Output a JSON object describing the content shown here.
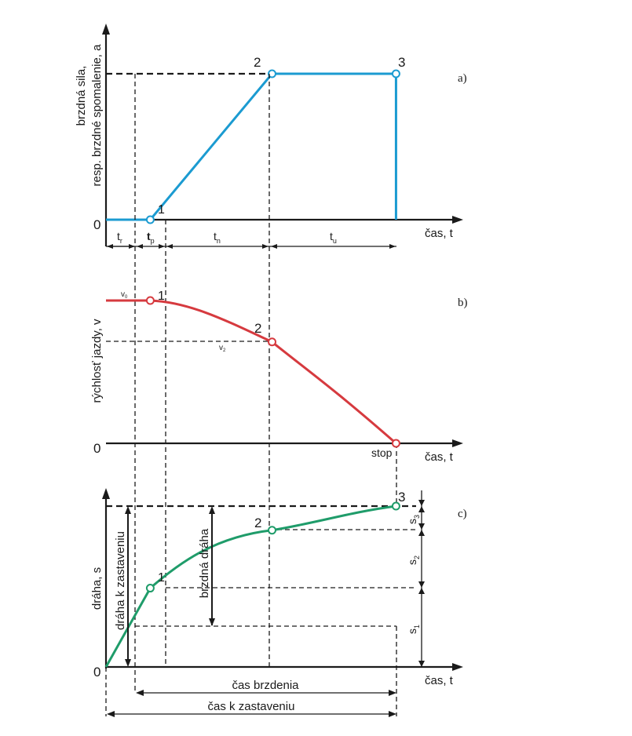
{
  "chart_data": [
    {
      "type": "line",
      "panel_label": "a)",
      "ylabel_line1": "brzdná sila,",
      "ylabel_line2": "resp. brzdné spomalenie, a",
      "xlabel": "čas, t",
      "origin_label": "0",
      "color": "#1b9bd1",
      "x": [
        0,
        0.75,
        1.31,
        1.31
      ],
      "y": [
        0,
        0,
        1,
        1
      ],
      "points": [
        {
          "label": "1",
          "x": 0.2,
          "y": 0
        },
        {
          "label": "2",
          "x": 0.75,
          "y": 1
        },
        {
          "label": "3",
          "x": 1.31,
          "y": 1
        }
      ],
      "intervals": [
        {
          "sym": "t",
          "sub": "r"
        },
        {
          "sym": "t",
          "sub": "p"
        },
        {
          "sym": "t",
          "sub": "n"
        },
        {
          "sym": "t",
          "sub": "u"
        }
      ]
    },
    {
      "type": "line",
      "panel_label": "b)",
      "ylabel": "rýchlosť jazdy, v",
      "xlabel": "čas, t",
      "origin_label": "0",
      "color": "#d63a3f",
      "v0_label": {
        "sym": "v",
        "sub": "0"
      },
      "v2_label": {
        "sym": "v",
        "sub": "2"
      },
      "stop_label": "stop",
      "x": [
        0,
        0.2,
        0.75,
        1.31
      ],
      "y": [
        1,
        1,
        0.71,
        0
      ],
      "points": [
        {
          "label": "1",
          "x": 0.2,
          "y": 1
        },
        {
          "label": "2",
          "x": 0.75,
          "y": 0.71
        }
      ]
    },
    {
      "type": "line",
      "panel_label": "c)",
      "ylabel": "dráha, s",
      "xlabel": "čas, t",
      "origin_label": "0",
      "color": "#1f9c6a",
      "x": [
        0,
        0.2,
        0.75,
        1.31
      ],
      "y": [
        0,
        0.49,
        0.85,
        1
      ],
      "points": [
        {
          "label": "1",
          "x": 0.2,
          "y": 0.49
        },
        {
          "label": "2",
          "x": 0.75,
          "y": 0.85
        },
        {
          "label": "3",
          "x": 1.31,
          "y": 1
        }
      ],
      "vertical_labels": {
        "stopping_distance": "dráha k zastaveniu",
        "braking_distance": "brzdná dráha"
      },
      "segments": [
        {
          "sym": "s",
          "sub": "3"
        },
        {
          "sym": "s",
          "sub": "2"
        },
        {
          "sym": "s",
          "sub": "1"
        }
      ],
      "time_spans": {
        "braking_time": "čas brzdenia",
        "stopping_time": "čas k zastaveniu"
      }
    }
  ]
}
